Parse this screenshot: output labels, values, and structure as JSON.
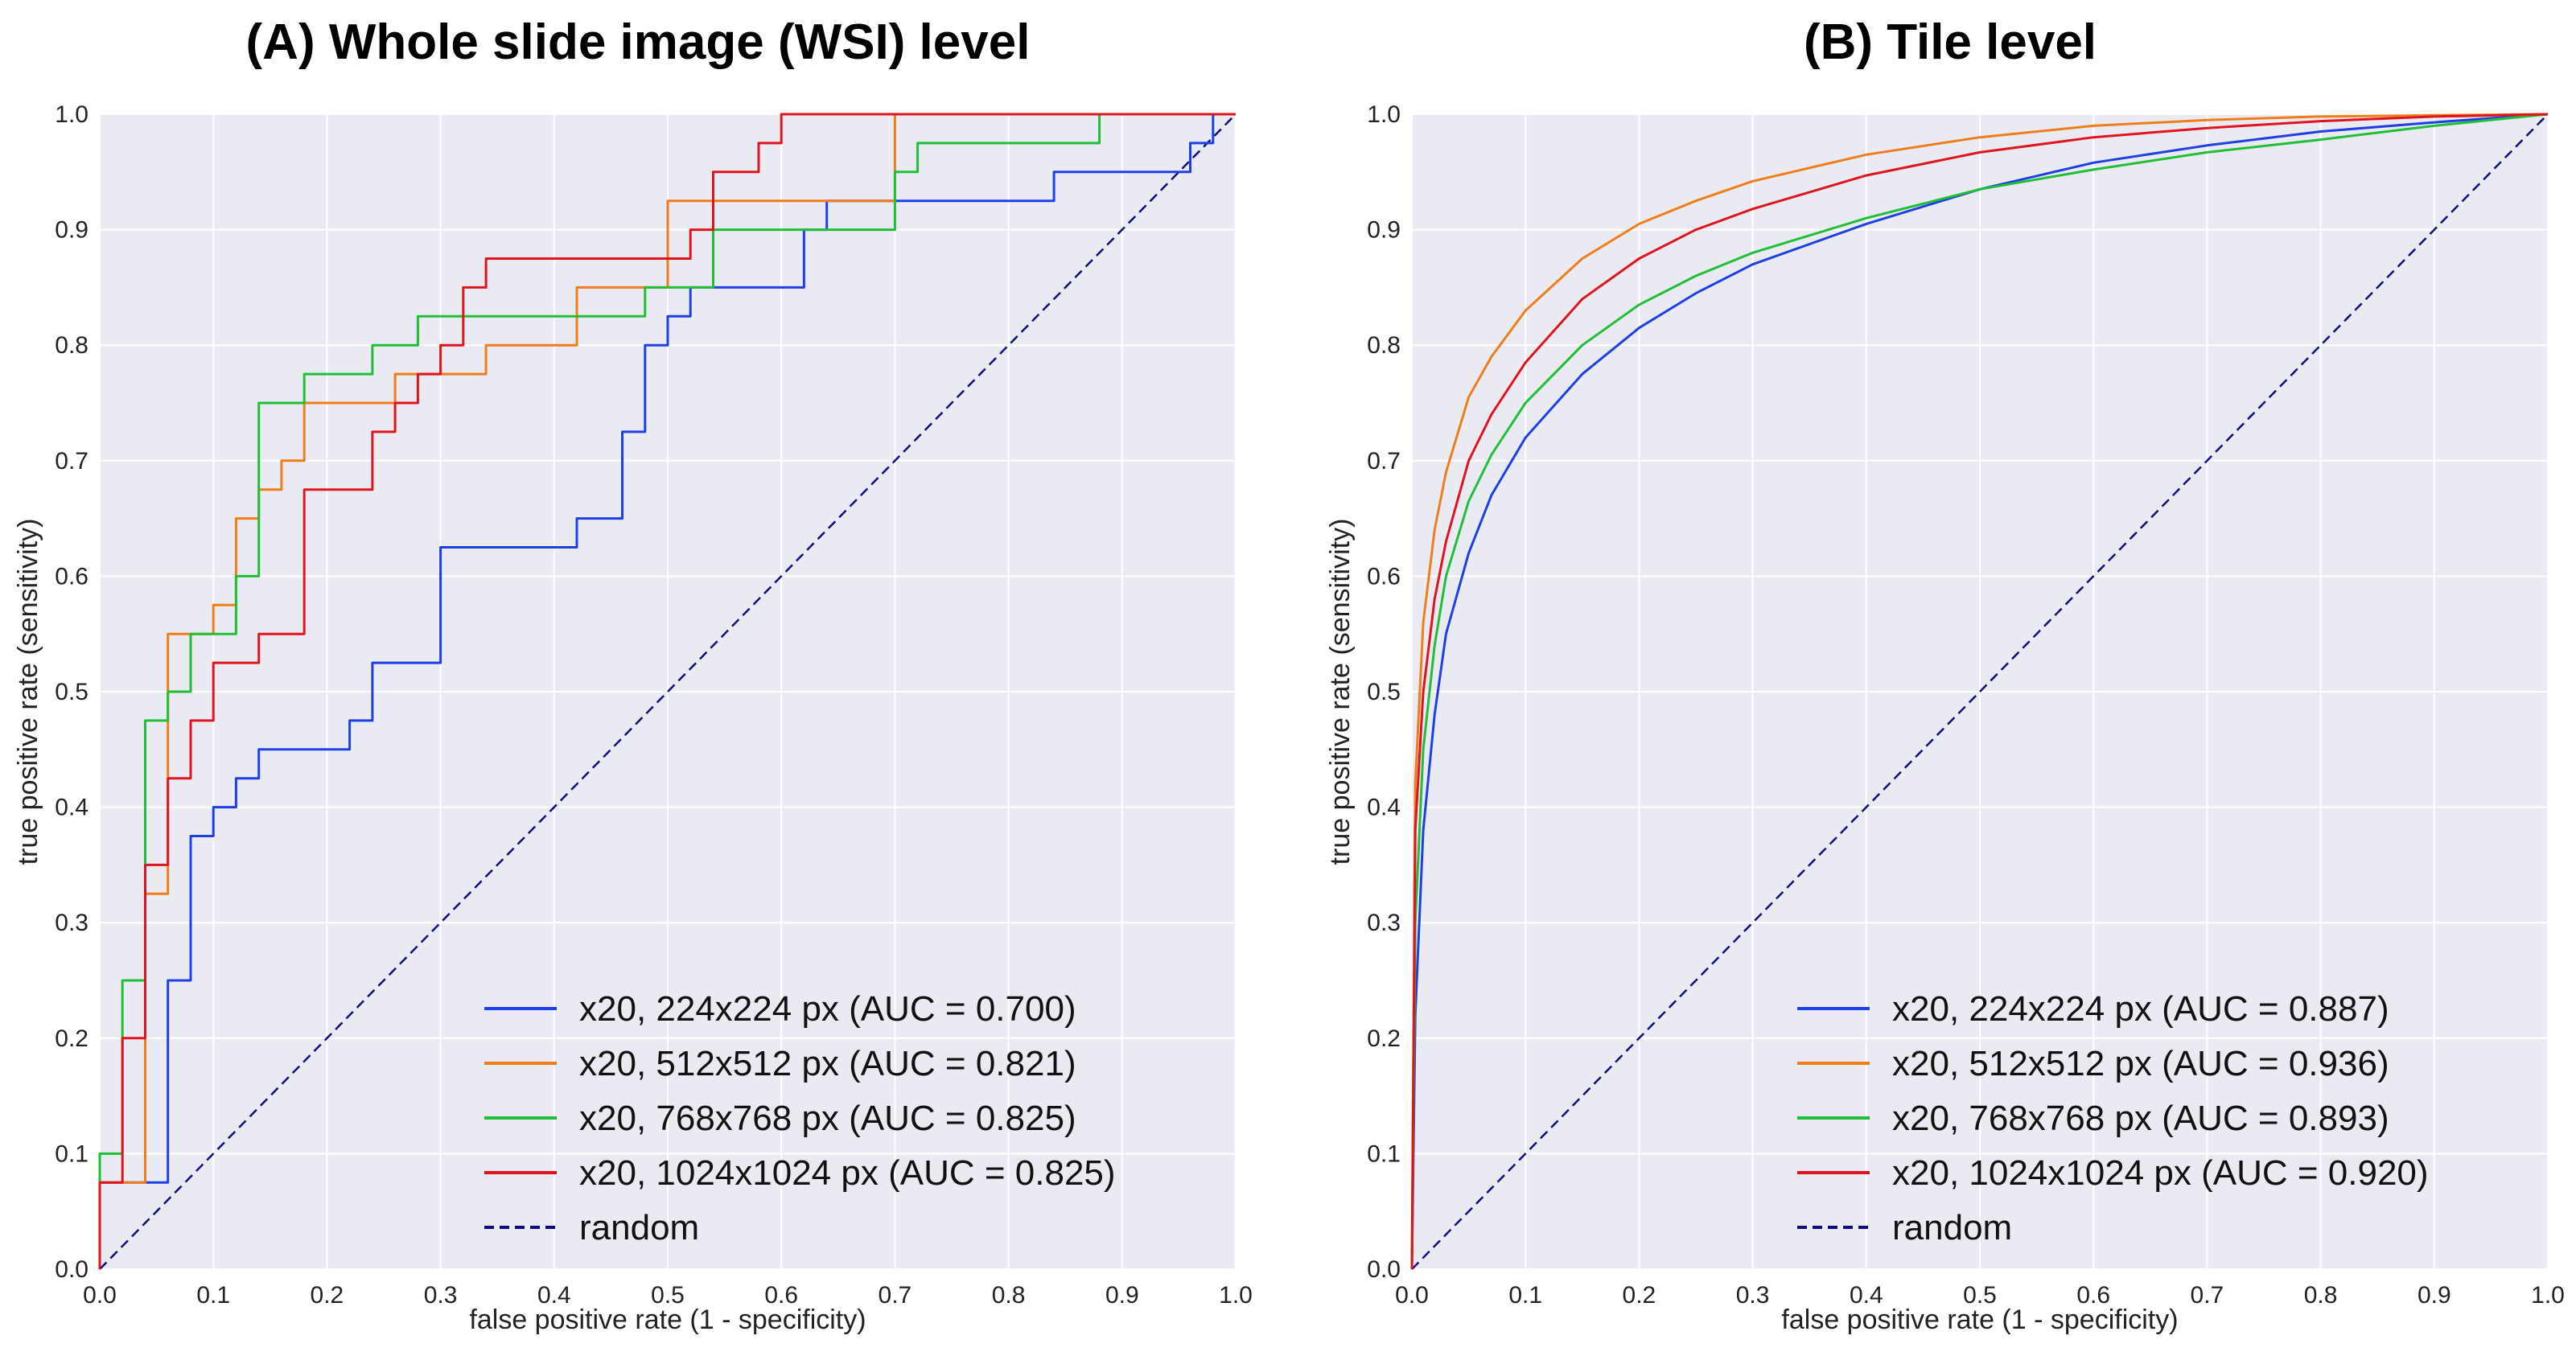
{
  "colors": {
    "blue": "#1f3fe6",
    "orange": "#f07d1a",
    "green": "#21bf37",
    "red": "#e0141e",
    "random": "#0d0d80"
  },
  "chart_data": [
    {
      "type": "line",
      "title": "(A) Whole slide image (WSI) level",
      "xlabel": "false positive rate (1 - specificity)",
      "ylabel": "true positive rate (sensitivity)",
      "xlim": [
        0.0,
        1.0
      ],
      "ylim": [
        0.0,
        1.0
      ],
      "xticks": [
        "0.0",
        "0.1",
        "0.2",
        "0.3",
        "0.4",
        "0.5",
        "0.6",
        "0.7",
        "0.8",
        "0.9",
        "1.0"
      ],
      "yticks": [
        "0.0",
        "0.1",
        "0.2",
        "0.3",
        "0.4",
        "0.5",
        "0.6",
        "0.7",
        "0.8",
        "0.9",
        "1.0"
      ],
      "grid": true,
      "legend_position": "bottom-right",
      "series": [
        {
          "name": "x20, 224x224 px (AUC = 0.700)",
          "color_key": "blue",
          "step": true,
          "x": [
            0,
            0,
            0.06,
            0.06,
            0.08,
            0.08,
            0.1,
            0.1,
            0.12,
            0.12,
            0.14,
            0.14,
            0.22,
            0.22,
            0.24,
            0.24,
            0.3,
            0.3,
            0.42,
            0.42,
            0.46,
            0.46,
            0.48,
            0.48,
            0.5,
            0.5,
            0.52,
            0.52,
            0.62,
            0.62,
            0.64,
            0.64,
            0.84,
            0.84,
            0.96,
            0.96,
            0.98,
            0.98,
            1.0
          ],
          "y": [
            0,
            0.075,
            0.075,
            0.25,
            0.25,
            0.375,
            0.375,
            0.4,
            0.4,
            0.425,
            0.425,
            0.45,
            0.45,
            0.475,
            0.475,
            0.525,
            0.525,
            0.625,
            0.625,
            0.65,
            0.65,
            0.725,
            0.725,
            0.8,
            0.8,
            0.825,
            0.825,
            0.85,
            0.85,
            0.9,
            0.9,
            0.925,
            0.925,
            0.95,
            0.95,
            0.975,
            0.975,
            1.0,
            1.0
          ]
        },
        {
          "name": "x20, 512x512 px (AUC = 0.821)",
          "color_key": "orange",
          "step": true,
          "x": [
            0,
            0,
            0.04,
            0.04,
            0.06,
            0.06,
            0.1,
            0.1,
            0.12,
            0.12,
            0.14,
            0.14,
            0.16,
            0.16,
            0.18,
            0.18,
            0.26,
            0.26,
            0.34,
            0.34,
            0.42,
            0.42,
            0.5,
            0.5,
            0.7,
            0.7,
            1.0
          ],
          "y": [
            0,
            0.075,
            0.075,
            0.325,
            0.325,
            0.55,
            0.55,
            0.575,
            0.575,
            0.65,
            0.65,
            0.675,
            0.675,
            0.7,
            0.7,
            0.75,
            0.75,
            0.775,
            0.775,
            0.8,
            0.8,
            0.85,
            0.85,
            0.925,
            0.925,
            1.0,
            1.0
          ]
        },
        {
          "name": "x20, 768x768 px (AUC = 0.825)",
          "color_key": "green",
          "step": true,
          "x": [
            0,
            0,
            0.02,
            0.02,
            0.04,
            0.04,
            0.06,
            0.06,
            0.08,
            0.08,
            0.12,
            0.12,
            0.14,
            0.14,
            0.18,
            0.18,
            0.24,
            0.24,
            0.28,
            0.28,
            0.48,
            0.48,
            0.54,
            0.54,
            0.7,
            0.7,
            0.72,
            0.72,
            0.88,
            0.88,
            1.0
          ],
          "y": [
            0,
            0.1,
            0.1,
            0.25,
            0.25,
            0.475,
            0.475,
            0.5,
            0.5,
            0.55,
            0.55,
            0.6,
            0.6,
            0.75,
            0.75,
            0.775,
            0.775,
            0.8,
            0.8,
            0.825,
            0.825,
            0.85,
            0.85,
            0.9,
            0.9,
            0.95,
            0.95,
            0.975,
            0.975,
            1.0,
            1.0
          ]
        },
        {
          "name": "x20, 1024x1024 px (AUC = 0.825)",
          "color_key": "red",
          "step": true,
          "x": [
            0,
            0,
            0.02,
            0.02,
            0.04,
            0.04,
            0.06,
            0.06,
            0.08,
            0.08,
            0.1,
            0.1,
            0.14,
            0.14,
            0.18,
            0.18,
            0.24,
            0.24,
            0.26,
            0.26,
            0.28,
            0.28,
            0.3,
            0.3,
            0.32,
            0.32,
            0.34,
            0.34,
            0.52,
            0.52,
            0.54,
            0.54,
            0.58,
            0.58,
            0.6,
            0.6,
            1.0
          ],
          "y": [
            0,
            0.075,
            0.075,
            0.2,
            0.2,
            0.35,
            0.35,
            0.425,
            0.425,
            0.475,
            0.475,
            0.525,
            0.525,
            0.55,
            0.55,
            0.675,
            0.675,
            0.725,
            0.725,
            0.75,
            0.75,
            0.775,
            0.775,
            0.8,
            0.8,
            0.85,
            0.85,
            0.875,
            0.875,
            0.9,
            0.9,
            0.95,
            0.95,
            0.975,
            0.975,
            1.0,
            1.0
          ]
        },
        {
          "name": "random",
          "color_key": "random",
          "dashed": true,
          "x": [
            0,
            1
          ],
          "y": [
            0,
            1
          ]
        }
      ]
    },
    {
      "type": "line",
      "title": "(B) Tile level",
      "xlabel": "false positive rate (1 - specificity)",
      "ylabel": "true positive rate (sensitivity)",
      "xlim": [
        0.0,
        1.0
      ],
      "ylim": [
        0.0,
        1.0
      ],
      "xticks": [
        "0.0",
        "0.1",
        "0.2",
        "0.3",
        "0.4",
        "0.5",
        "0.6",
        "0.7",
        "0.8",
        "0.9",
        "1.0"
      ],
      "yticks": [
        "0.0",
        "0.1",
        "0.2",
        "0.3",
        "0.4",
        "0.5",
        "0.6",
        "0.7",
        "0.8",
        "0.9",
        "1.0"
      ],
      "grid": true,
      "legend_position": "bottom-right",
      "series": [
        {
          "name": "x20, 224x224 px (AUC = 0.887)",
          "color_key": "blue",
          "x": [
            0,
            0.003,
            0.01,
            0.02,
            0.03,
            0.05,
            0.07,
            0.1,
            0.15,
            0.2,
            0.25,
            0.3,
            0.4,
            0.5,
            0.6,
            0.7,
            0.8,
            0.9,
            1.0
          ],
          "y": [
            0,
            0.22,
            0.38,
            0.48,
            0.55,
            0.62,
            0.67,
            0.72,
            0.775,
            0.815,
            0.845,
            0.87,
            0.905,
            0.935,
            0.958,
            0.973,
            0.985,
            0.993,
            1.0
          ]
        },
        {
          "name": "x20, 512x512 px (AUC = 0.936)",
          "color_key": "orange",
          "x": [
            0,
            0.003,
            0.01,
            0.02,
            0.03,
            0.05,
            0.07,
            0.1,
            0.15,
            0.2,
            0.25,
            0.3,
            0.4,
            0.5,
            0.6,
            0.7,
            0.8,
            0.9,
            1.0
          ],
          "y": [
            0,
            0.42,
            0.56,
            0.64,
            0.69,
            0.755,
            0.79,
            0.83,
            0.875,
            0.905,
            0.925,
            0.942,
            0.965,
            0.98,
            0.99,
            0.995,
            0.998,
            0.999,
            1.0
          ]
        },
        {
          "name": "x20, 768x768 px (AUC = 0.893)",
          "color_key": "green",
          "x": [
            0,
            0.003,
            0.01,
            0.02,
            0.03,
            0.05,
            0.07,
            0.1,
            0.15,
            0.2,
            0.25,
            0.3,
            0.4,
            0.5,
            0.6,
            0.7,
            0.8,
            0.9,
            1.0
          ],
          "y": [
            0,
            0.3,
            0.45,
            0.54,
            0.6,
            0.665,
            0.705,
            0.75,
            0.8,
            0.835,
            0.86,
            0.88,
            0.91,
            0.935,
            0.952,
            0.967,
            0.978,
            0.99,
            1.0
          ]
        },
        {
          "name": "x20, 1024x1024 px (AUC = 0.920)",
          "color_key": "red",
          "x": [
            0,
            0.003,
            0.01,
            0.02,
            0.03,
            0.05,
            0.07,
            0.1,
            0.15,
            0.2,
            0.25,
            0.3,
            0.4,
            0.5,
            0.6,
            0.7,
            0.8,
            0.9,
            1.0
          ],
          "y": [
            0,
            0.38,
            0.5,
            0.58,
            0.63,
            0.7,
            0.74,
            0.785,
            0.84,
            0.875,
            0.9,
            0.918,
            0.947,
            0.967,
            0.98,
            0.988,
            0.994,
            0.998,
            1.0
          ]
        },
        {
          "name": "random",
          "color_key": "random",
          "dashed": true,
          "x": [
            0,
            1
          ],
          "y": [
            0,
            1
          ]
        }
      ]
    }
  ]
}
